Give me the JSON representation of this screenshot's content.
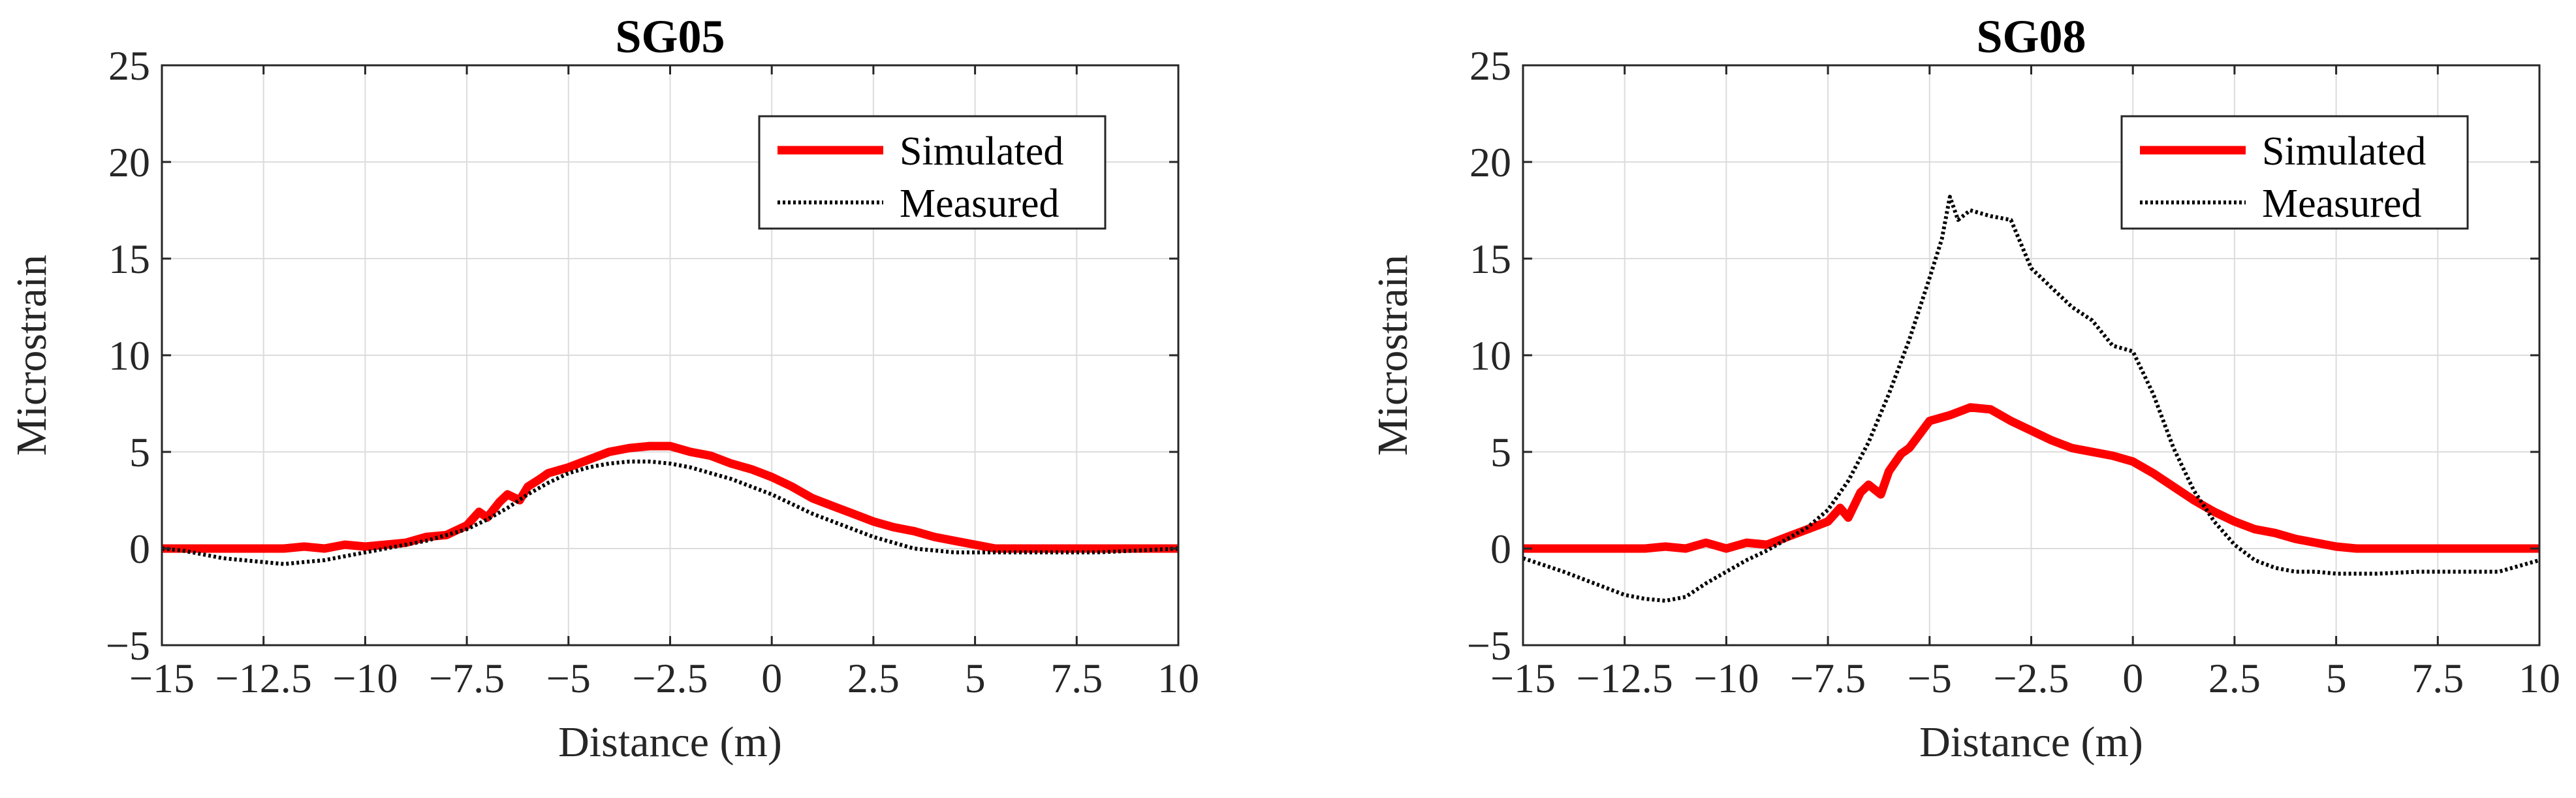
{
  "chart_data": [
    {
      "type": "line",
      "title": "SG05",
      "xlabel": "Distance (m)",
      "ylabel": "Microstrain",
      "xlim": [
        -15,
        10
      ],
      "ylim": [
        -5,
        25
      ],
      "xticks": [
        -15,
        -12.5,
        -10,
        -7.5,
        -5,
        -2.5,
        0,
        2.5,
        5,
        7.5,
        10
      ],
      "xtick_labels": [
        "−15",
        "−12.5",
        "−10",
        "−7.5",
        "−5",
        "−2.5",
        "0",
        "2.5",
        "5",
        "7.5",
        "10"
      ],
      "yticks": [
        -5,
        0,
        5,
        10,
        15,
        20,
        25
      ],
      "ytick_labels": [
        "−5",
        "0",
        "5",
        "10",
        "15",
        "20",
        "25"
      ],
      "grid": true,
      "legend": "top-right",
      "series": [
        {
          "name": "Simulated",
          "color": "#ff0000",
          "style": "solid",
          "x": [
            -15,
            -14,
            -13,
            -12,
            -11.5,
            -11,
            -10.5,
            -10,
            -9.5,
            -9,
            -8.5,
            -8,
            -7.5,
            -7.2,
            -7,
            -6.7,
            -6.5,
            -6.2,
            -6,
            -5.7,
            -5.5,
            -5,
            -4.5,
            -4,
            -3.5,
            -3,
            -2.5,
            -2,
            -1.5,
            -1,
            -0.5,
            0,
            0.5,
            1,
            1.5,
            2,
            2.5,
            3,
            3.5,
            4,
            4.5,
            5,
            5.5,
            6,
            7,
            8,
            9,
            10
          ],
          "y": [
            0,
            0,
            0,
            0,
            0.1,
            0,
            0.2,
            0.1,
            0.2,
            0.3,
            0.6,
            0.7,
            1.2,
            1.9,
            1.6,
            2.4,
            2.8,
            2.5,
            3.2,
            3.6,
            3.9,
            4.2,
            4.6,
            5.0,
            5.2,
            5.3,
            5.3,
            5.0,
            4.8,
            4.4,
            4.1,
            3.7,
            3.2,
            2.6,
            2.2,
            1.8,
            1.4,
            1.1,
            0.9,
            0.6,
            0.4,
            0.2,
            0,
            0,
            0,
            0,
            0,
            0
          ]
        },
        {
          "name": "Measured",
          "color": "#000000",
          "style": "dotted",
          "x": [
            -15,
            -14.5,
            -14,
            -13.5,
            -13,
            -12.5,
            -12,
            -11.5,
            -11,
            -10.5,
            -10,
            -9.5,
            -9,
            -8.5,
            -8,
            -7.5,
            -7,
            -6.5,
            -6,
            -5.5,
            -5,
            -4.5,
            -4,
            -3.5,
            -3,
            -2.5,
            -2,
            -1.5,
            -1,
            -0.5,
            0,
            0.5,
            1,
            1.5,
            2,
            2.5,
            3,
            3.5,
            4,
            4.5,
            5,
            6,
            7,
            8,
            9,
            10
          ],
          "y": [
            0,
            -0.1,
            -0.3,
            -0.5,
            -0.6,
            -0.7,
            -0.8,
            -0.7,
            -0.6,
            -0.4,
            -0.2,
            0,
            0.2,
            0.4,
            0.7,
            1.0,
            1.5,
            2.1,
            2.8,
            3.4,
            3.9,
            4.2,
            4.4,
            4.5,
            4.5,
            4.4,
            4.2,
            3.9,
            3.6,
            3.2,
            2.8,
            2.3,
            1.8,
            1.4,
            1.0,
            0.6,
            0.3,
            0,
            -0.1,
            -0.2,
            -0.2,
            -0.2,
            -0.2,
            -0.2,
            -0.1,
            0
          ]
        }
      ]
    },
    {
      "type": "line",
      "title": "SG08",
      "xlabel": "Distance (m)",
      "ylabel": "Microstrain",
      "xlim": [
        -15,
        10
      ],
      "ylim": [
        -5,
        25
      ],
      "xticks": [
        -15,
        -12.5,
        -10,
        -7.5,
        -5,
        -2.5,
        0,
        2.5,
        5,
        7.5,
        10
      ],
      "xtick_labels": [
        "−15",
        "−12.5",
        "−10",
        "−7.5",
        "−5",
        "−2.5",
        "0",
        "2.5",
        "5",
        "7.5",
        "10"
      ],
      "yticks": [
        -5,
        0,
        5,
        10,
        15,
        20,
        25
      ],
      "ytick_labels": [
        "−5",
        "0",
        "5",
        "10",
        "15",
        "20",
        "25"
      ],
      "grid": true,
      "legend": "top-right",
      "series": [
        {
          "name": "Simulated",
          "color": "#ff0000",
          "style": "solid",
          "x": [
            -15,
            -14,
            -13,
            -12,
            -11.5,
            -11,
            -10.5,
            -10,
            -9.5,
            -9,
            -8.5,
            -8,
            -7.5,
            -7.2,
            -7,
            -6.7,
            -6.5,
            -6.2,
            -6,
            -5.7,
            -5.5,
            -5,
            -4.5,
            -4,
            -3.5,
            -3,
            -2.5,
            -2,
            -1.5,
            -1,
            -0.5,
            0,
            0.5,
            1,
            1.5,
            2,
            2.5,
            3,
            3.5,
            4,
            4.5,
            5,
            5.5,
            6,
            7,
            8,
            9,
            10
          ],
          "y": [
            0,
            0,
            0,
            0,
            0.1,
            0,
            0.3,
            0,
            0.3,
            0.2,
            0.6,
            1.0,
            1.4,
            2.1,
            1.6,
            2.9,
            3.3,
            2.8,
            4.0,
            4.9,
            5.2,
            6.6,
            6.9,
            7.3,
            7.2,
            6.6,
            6.1,
            5.6,
            5.2,
            5.0,
            4.8,
            4.5,
            3.9,
            3.2,
            2.5,
            1.9,
            1.4,
            1.0,
            0.8,
            0.5,
            0.3,
            0.1,
            0,
            0,
            0,
            0,
            0,
            0
          ]
        },
        {
          "name": "Measured",
          "color": "#000000",
          "style": "dotted",
          "x": [
            -15,
            -14,
            -13,
            -12.5,
            -12,
            -11.5,
            -11,
            -10.5,
            -10,
            -9.5,
            -9,
            -8.5,
            -8,
            -7.5,
            -7,
            -6.5,
            -6,
            -5.5,
            -5,
            -4.7,
            -4.5,
            -4.3,
            -4,
            -3.5,
            -3,
            -2.5,
            -2,
            -1.5,
            -1,
            -0.5,
            0,
            0.5,
            1,
            1.5,
            2,
            2.5,
            3,
            3.5,
            4,
            4.5,
            5,
            6,
            7,
            8,
            9,
            10
          ],
          "y": [
            -0.5,
            -1.2,
            -2.0,
            -2.4,
            -2.6,
            -2.7,
            -2.5,
            -1.8,
            -1.2,
            -0.6,
            -0.1,
            0.5,
            1.1,
            2.0,
            3.5,
            5.5,
            8.0,
            10.8,
            14.0,
            16.0,
            18.2,
            17.0,
            17.5,
            17.2,
            17.0,
            14.5,
            13.5,
            12.5,
            11.8,
            10.5,
            10.2,
            8.0,
            5.2,
            3.0,
            1.4,
            0.2,
            -0.6,
            -1.0,
            -1.2,
            -1.2,
            -1.3,
            -1.3,
            -1.2,
            -1.2,
            -1.2,
            -0.6
          ]
        }
      ]
    }
  ]
}
